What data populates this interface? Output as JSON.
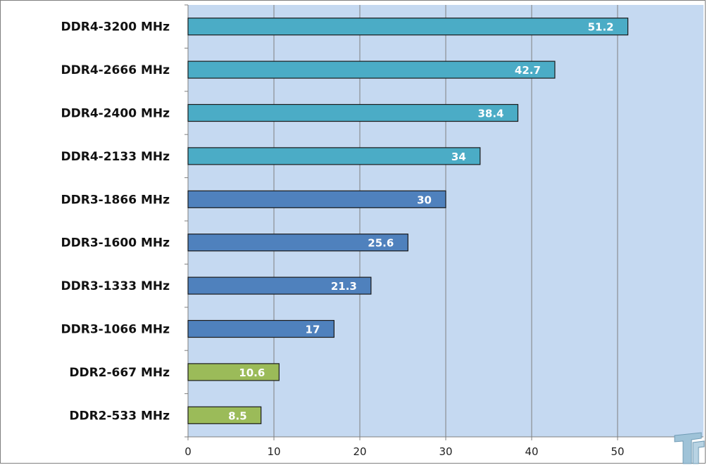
{
  "chart_data": {
    "type": "bar",
    "orientation": "horizontal",
    "title": "",
    "xlabel": "",
    "ylabel": "",
    "categories": [
      "DDR4-3200 MHz",
      "DDR4-2666 MHz",
      "DDR4-2400 MHz",
      "DDR4-2133 MHz",
      "DDR3-1866 MHz",
      "DDR3-1600 MHz",
      "DDR3-1333 MHz",
      "DDR3-1066 MHz",
      "DDR2-667 MHz",
      "DDR2-533 MHz"
    ],
    "values": [
      51.2,
      42.7,
      38.4,
      34,
      30,
      25.6,
      21.3,
      17,
      10.6,
      8.5
    ],
    "value_labels": [
      "51.2",
      "42.7",
      "38.4",
      "34",
      "30",
      "25.6",
      "21.3",
      "17",
      "10.6",
      "8.5"
    ],
    "groups": [
      "DDR4",
      "DDR4",
      "DDR4",
      "DDR4",
      "DDR3",
      "DDR3",
      "DDR3",
      "DDR3",
      "DDR2",
      "DDR2"
    ],
    "group_colors": {
      "DDR4": "#4bacc6",
      "DDR3": "#4f81bd",
      "DDR2": "#9bbb59"
    },
    "plot_background": "#c5d9f1",
    "xlim": [
      0,
      60
    ],
    "xticks": [
      0,
      10,
      20,
      30,
      40,
      50
    ],
    "grid": true,
    "legend": "none"
  }
}
